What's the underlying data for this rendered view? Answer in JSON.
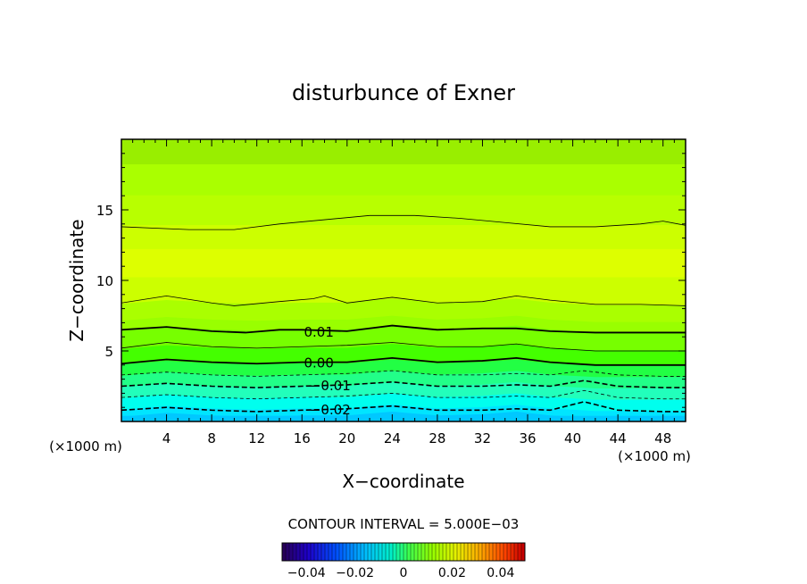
{
  "chart_data": {
    "type": "contour",
    "title": "disturbunce of Exner",
    "xlabel": "X−coordinate",
    "ylabel": "Z−coordinate",
    "x_unit": "(×1000 m)",
    "y_unit": "(×1000 m)",
    "xlim": [
      0,
      50
    ],
    "ylim": [
      0,
      20
    ],
    "xticks": [
      4,
      8,
      12,
      16,
      20,
      24,
      28,
      32,
      36,
      40,
      44,
      48
    ],
    "yticks": [
      5,
      10,
      15
    ],
    "contour_interval_text": "CONTOUR INTERVAL = 5.000E−03",
    "contour_labels": [
      {
        "text": "0.01",
        "x": 17.5,
        "z": 6.4
      },
      {
        "text": "0.00",
        "x": 17.5,
        "z": 4.2
      },
      {
        "text": "−0.01",
        "x": 18.5,
        "z": 2.6
      },
      {
        "text": "−0.02",
        "x": 18.5,
        "z": 0.9
      }
    ],
    "contours": [
      {
        "level": 0.01,
        "style": "thin",
        "points": [
          [
            0,
            13.8
          ],
          [
            6,
            13.6
          ],
          [
            10,
            13.6
          ],
          [
            14,
            14.0
          ],
          [
            18,
            14.3
          ],
          [
            22,
            14.6
          ],
          [
            26,
            14.6
          ],
          [
            30,
            14.4
          ],
          [
            34,
            14.1
          ],
          [
            38,
            13.8
          ],
          [
            42,
            13.8
          ],
          [
            46,
            14.0
          ],
          [
            48,
            14.2
          ],
          [
            50,
            13.9
          ]
        ]
      },
      {
        "level": 0.01,
        "style": "thin",
        "points": [
          [
            0,
            8.4
          ],
          [
            4,
            8.9
          ],
          [
            8,
            8.4
          ],
          [
            10,
            8.2
          ],
          [
            14,
            8.5
          ],
          [
            17,
            8.7
          ],
          [
            18,
            8.9
          ],
          [
            20,
            8.4
          ],
          [
            24,
            8.8
          ],
          [
            28,
            8.4
          ],
          [
            32,
            8.5
          ],
          [
            35,
            8.9
          ],
          [
            38,
            8.6
          ],
          [
            42,
            8.3
          ],
          [
            46,
            8.3
          ],
          [
            50,
            8.2
          ]
        ]
      },
      {
        "level": 0.01,
        "style": "thick",
        "points": [
          [
            0,
            6.5
          ],
          [
            4,
            6.7
          ],
          [
            8,
            6.4
          ],
          [
            11,
            6.3
          ],
          [
            14,
            6.5
          ],
          [
            16,
            6.5
          ],
          [
            20,
            6.4
          ],
          [
            24,
            6.8
          ],
          [
            28,
            6.5
          ],
          [
            32,
            6.6
          ],
          [
            35,
            6.6
          ],
          [
            38,
            6.4
          ],
          [
            42,
            6.3
          ],
          [
            46,
            6.3
          ],
          [
            50,
            6.3
          ]
        ]
      },
      {
        "level": 0.005,
        "style": "thin",
        "points": [
          [
            0,
            5.2
          ],
          [
            4,
            5.6
          ],
          [
            8,
            5.3
          ],
          [
            12,
            5.2
          ],
          [
            16,
            5.3
          ],
          [
            20,
            5.4
          ],
          [
            24,
            5.6
          ],
          [
            28,
            5.3
          ],
          [
            32,
            5.3
          ],
          [
            35,
            5.5
          ],
          [
            38,
            5.2
          ],
          [
            42,
            5.0
          ],
          [
            46,
            5.0
          ],
          [
            50,
            5.0
          ]
        ]
      },
      {
        "level": 0.0,
        "style": "thick",
        "points": [
          [
            0,
            4.1
          ],
          [
            4,
            4.4
          ],
          [
            8,
            4.2
          ],
          [
            12,
            4.1
          ],
          [
            16,
            4.2
          ],
          [
            20,
            4.2
          ],
          [
            24,
            4.5
          ],
          [
            28,
            4.2
          ],
          [
            32,
            4.3
          ],
          [
            35,
            4.5
          ],
          [
            38,
            4.2
          ],
          [
            42,
            4.0
          ],
          [
            46,
            4.0
          ],
          [
            50,
            4.0
          ]
        ]
      },
      {
        "level": -0.005,
        "style": "dashed",
        "points": [
          [
            0,
            3.3
          ],
          [
            4,
            3.5
          ],
          [
            8,
            3.3
          ],
          [
            12,
            3.2
          ],
          [
            16,
            3.3
          ],
          [
            20,
            3.4
          ],
          [
            24,
            3.6
          ],
          [
            28,
            3.3
          ],
          [
            32,
            3.3
          ],
          [
            35,
            3.4
          ],
          [
            38,
            3.3
          ],
          [
            41,
            3.6
          ],
          [
            44,
            3.3
          ],
          [
            48,
            3.2
          ],
          [
            50,
            3.2
          ]
        ]
      },
      {
        "level": -0.01,
        "style": "dashed-thick",
        "points": [
          [
            0,
            2.5
          ],
          [
            4,
            2.7
          ],
          [
            8,
            2.5
          ],
          [
            12,
            2.4
          ],
          [
            16,
            2.5
          ],
          [
            20,
            2.6
          ],
          [
            24,
            2.8
          ],
          [
            28,
            2.5
          ],
          [
            32,
            2.5
          ],
          [
            35,
            2.6
          ],
          [
            38,
            2.5
          ],
          [
            41,
            2.9
          ],
          [
            44,
            2.5
          ],
          [
            48,
            2.4
          ],
          [
            50,
            2.4
          ]
        ]
      },
      {
        "level": -0.015,
        "style": "dashed",
        "points": [
          [
            0,
            1.7
          ],
          [
            4,
            1.9
          ],
          [
            8,
            1.7
          ],
          [
            12,
            1.6
          ],
          [
            16,
            1.7
          ],
          [
            20,
            1.8
          ],
          [
            24,
            2.0
          ],
          [
            28,
            1.7
          ],
          [
            32,
            1.7
          ],
          [
            35,
            1.8
          ],
          [
            38,
            1.7
          ],
          [
            41,
            2.2
          ],
          [
            44,
            1.7
          ],
          [
            48,
            1.6
          ],
          [
            50,
            1.6
          ]
        ]
      },
      {
        "level": -0.02,
        "style": "dashed-thick",
        "points": [
          [
            0,
            0.8
          ],
          [
            4,
            1.0
          ],
          [
            8,
            0.8
          ],
          [
            12,
            0.7
          ],
          [
            16,
            0.8
          ],
          [
            20,
            0.9
          ],
          [
            24,
            1.1
          ],
          [
            28,
            0.8
          ],
          [
            32,
            0.8
          ],
          [
            35,
            0.9
          ],
          [
            38,
            0.8
          ],
          [
            41,
            1.4
          ],
          [
            44,
            0.8
          ],
          [
            48,
            0.7
          ],
          [
            50,
            0.7
          ]
        ]
      }
    ],
    "fill_bands": [
      {
        "top": 20.0,
        "color": "#99ee00"
      },
      {
        "top": 18.2,
        "color": "#aaff00"
      },
      {
        "top": 16.0,
        "color": "#b8ff00"
      },
      {
        "top": 13.9,
        "color": "#ccff00"
      },
      {
        "top": 12.2,
        "color": "#ddff00"
      },
      {
        "top": 10.2,
        "color": "#ccff00"
      },
      {
        "top": 8.4,
        "color": "#aaff00"
      },
      {
        "top": 7.2,
        "color": "#99ff00"
      },
      {
        "top": 6.5,
        "color": "#77ff00"
      },
      {
        "top": 5.2,
        "color": "#44ff00"
      },
      {
        "top": 4.1,
        "color": "#22ff44"
      },
      {
        "top": 3.3,
        "color": "#22ff88"
      },
      {
        "top": 2.5,
        "color": "#22ffbb"
      },
      {
        "top": 1.7,
        "color": "#00ffee"
      },
      {
        "top": 0.9,
        "color": "#00e5ff"
      },
      {
        "top": 0.4,
        "color": "#00c8ff"
      }
    ],
    "colorbar": {
      "min": -0.05,
      "max": 0.05,
      "ticks": [
        {
          "value": -0.04,
          "label": "−0.04"
        },
        {
          "value": -0.02,
          "label": "−0.02"
        },
        {
          "value": 0,
          "label": "0"
        },
        {
          "value": 0.02,
          "label": "0.02"
        },
        {
          "value": 0.04,
          "label": "0.04"
        }
      ]
    }
  }
}
